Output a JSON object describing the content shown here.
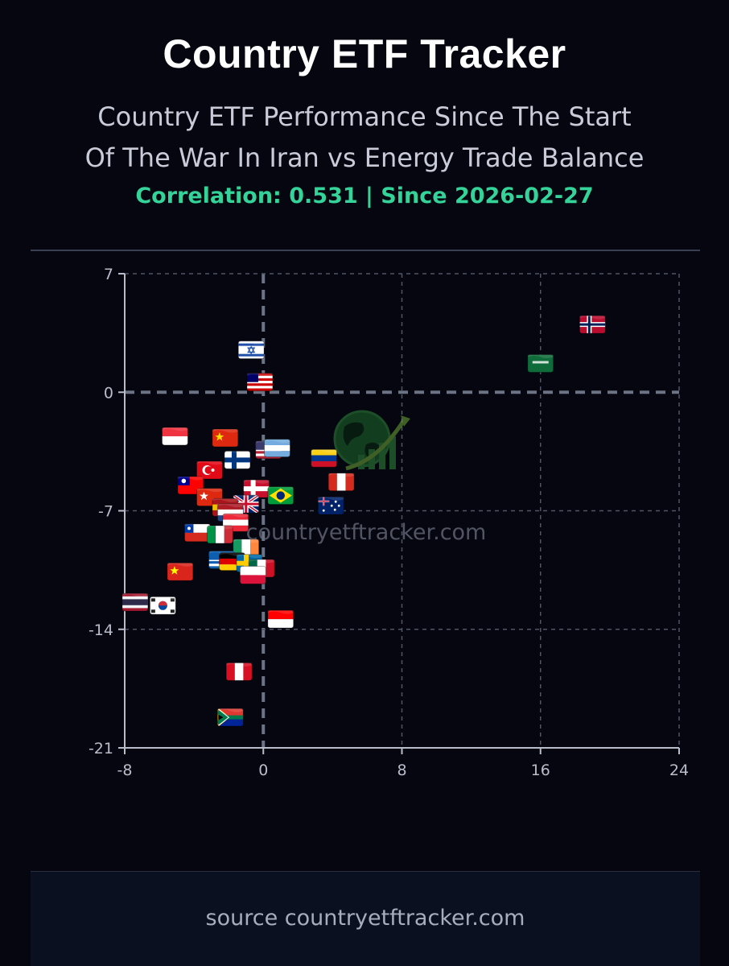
{
  "header": {
    "title": "Country ETF Tracker",
    "subtitle_line1": "Country ETF Performance Since The Start",
    "subtitle_line2": "Of The War In Iran vs Energy Trade Balance",
    "meta": "Correlation: 0.531 | Since 2026-02-27"
  },
  "colors": {
    "background": "#05060f",
    "accent_green": "#34d399",
    "grid": "#5b6170",
    "axis": "#b9bdc9",
    "footer_bg": "#0b1020"
  },
  "chart_data": {
    "type": "scatter",
    "title": "Country ETF Performance Since The Start Of The War In Iran vs Energy Trade Balance",
    "xlabel": "",
    "ylabel": "",
    "xlim": [
      -8,
      24
    ],
    "ylim": [
      -21,
      7
    ],
    "x_ticks": [
      -8,
      0,
      8,
      16,
      24
    ],
    "y_ticks": [
      7,
      0,
      -7,
      -14,
      -21
    ],
    "grid": true,
    "marker": "country-flag",
    "watermark": "countryetftracker.com",
    "points": [
      {
        "country": "Norway",
        "x": 19.0,
        "y": 4.0,
        "style": "nordic",
        "c1": "#ba0c2f",
        "c2": "#ffffff",
        "c3": "#00205b"
      },
      {
        "country": "Saudi Arabia",
        "x": 16.0,
        "y": 1.7,
        "style": "solid",
        "c1": "#0f6b3a",
        "c2": "#ffffff"
      },
      {
        "country": "Israel",
        "x": -0.7,
        "y": 2.5,
        "style": "h-stripe-center",
        "c1": "#ffffff",
        "c2": "#1f4fa8"
      },
      {
        "country": "Malaysia",
        "x": -0.2,
        "y": 0.6,
        "style": "stripes",
        "c1": "#cc0001",
        "c2": "#ffffff",
        "c3": "#010066"
      },
      {
        "country": "Singapore",
        "x": -5.1,
        "y": -2.6,
        "style": "h2",
        "c1": "#ef3340",
        "c2": "#ffffff"
      },
      {
        "country": "China",
        "x": -2.2,
        "y": -2.7,
        "style": "solid-star",
        "c1": "#de2910",
        "c2": "#ffde00"
      },
      {
        "country": "United States",
        "x": 0.3,
        "y": -3.4,
        "style": "stripes",
        "c1": "#b22234",
        "c2": "#ffffff",
        "c3": "#3c3b6e"
      },
      {
        "country": "Argentina",
        "x": 0.8,
        "y": -3.3,
        "style": "h3",
        "c1": "#74acdf",
        "c2": "#ffffff",
        "c3": "#74acdf"
      },
      {
        "country": "Colombia",
        "x": 3.5,
        "y": -3.9,
        "style": "h3",
        "c1": "#fcd116",
        "c2": "#003893",
        "c3": "#ce1126"
      },
      {
        "country": "Finland",
        "x": -1.5,
        "y": -4.0,
        "style": "nordic",
        "c1": "#ffffff",
        "c2": "#003580",
        "c3": "#003580"
      },
      {
        "country": "Turkey",
        "x": -3.1,
        "y": -4.6,
        "style": "solid-crescent",
        "c1": "#e30a17",
        "c2": "#ffffff"
      },
      {
        "country": "Taiwan",
        "x": -4.2,
        "y": -5.5,
        "style": "canton",
        "c1": "#fe0000",
        "c2": "#000095"
      },
      {
        "country": "Canada",
        "x": 4.5,
        "y": -5.3,
        "style": "v3",
        "c1": "#d52b1e",
        "c2": "#ffffff",
        "c3": "#d52b1e"
      },
      {
        "country": "Denmark",
        "x": -0.4,
        "y": -5.7,
        "style": "nordic",
        "c1": "#c8102e",
        "c2": "#ffffff",
        "c3": "#ffffff"
      },
      {
        "country": "Brazil",
        "x": 1.0,
        "y": -6.1,
        "style": "diamond",
        "c1": "#009c3b",
        "c2": "#ffdf00",
        "c3": "#002776"
      },
      {
        "country": "Hong Kong",
        "x": -3.1,
        "y": -6.2,
        "style": "solid-star",
        "c1": "#de2910",
        "c2": "#ffffff"
      },
      {
        "country": "United Kingdom",
        "x": -1.0,
        "y": -6.6,
        "style": "union",
        "c1": "#012169",
        "c2": "#ffffff",
        "c3": "#c8102e"
      },
      {
        "country": "Australia",
        "x": 3.9,
        "y": -6.7,
        "style": "canton-stars",
        "c1": "#012169",
        "c2": "#ffffff"
      },
      {
        "country": "Spain",
        "x": -2.2,
        "y": -6.8,
        "style": "h3",
        "c1": "#aa151b",
        "c2": "#f1bf00",
        "c3": "#aa151b"
      },
      {
        "country": "Netherlands",
        "x": -1.9,
        "y": -7.1,
        "style": "h3",
        "c1": "#ae1c28",
        "c2": "#ffffff",
        "c3": "#21468b"
      },
      {
        "country": "Austria",
        "x": -1.6,
        "y": -7.7,
        "style": "h3",
        "c1": "#ed2939",
        "c2": "#ffffff",
        "c3": "#ed2939"
      },
      {
        "country": "Chile",
        "x": -3.8,
        "y": -8.3,
        "style": "chile",
        "c1": "#d52b1e",
        "c2": "#ffffff",
        "c3": "#0039a6"
      },
      {
        "country": "Italy",
        "x": -2.5,
        "y": -8.4,
        "style": "v3",
        "c1": "#009246",
        "c2": "#ffffff",
        "c3": "#ce2b37"
      },
      {
        "country": "Ireland",
        "x": -1.0,
        "y": -9.2,
        "style": "v3",
        "c1": "#169b62",
        "c2": "#ffffff",
        "c3": "#ff883e"
      },
      {
        "country": "Greece",
        "x": -2.4,
        "y": -9.9,
        "style": "stripes",
        "c1": "#0d5eaf",
        "c2": "#ffffff",
        "c3": "#0d5eaf"
      },
      {
        "country": "Germany",
        "x": -1.8,
        "y": -10.0,
        "style": "h3",
        "c1": "#000000",
        "c2": "#dd0000",
        "c3": "#ffce00"
      },
      {
        "country": "Sweden",
        "x": -0.8,
        "y": -10.1,
        "style": "nordic",
        "c1": "#006aa7",
        "c2": "#fecc00",
        "c3": "#fecc00"
      },
      {
        "country": "Mexico",
        "x": -0.1,
        "y": -10.4,
        "style": "v3",
        "c1": "#006847",
        "c2": "#ffffff",
        "c3": "#ce1126"
      },
      {
        "country": "Poland",
        "x": -0.6,
        "y": -10.8,
        "style": "h2",
        "c1": "#ffffff",
        "c2": "#dc143c"
      },
      {
        "country": "Vietnam",
        "x": -4.8,
        "y": -10.6,
        "style": "solid-star",
        "c1": "#da251d",
        "c2": "#ffff00"
      },
      {
        "country": "Thailand",
        "x": -7.4,
        "y": -12.4,
        "style": "thai",
        "c1": "#a51931",
        "c2": "#f4f5f8",
        "c3": "#2d2a4a"
      },
      {
        "country": "South Korea",
        "x": -5.8,
        "y": -12.6,
        "style": "korea",
        "c1": "#ffffff",
        "c2": "#cd2e3a",
        "c3": "#0047a0"
      },
      {
        "country": "Indonesia",
        "x": 1.0,
        "y": -13.4,
        "style": "h2",
        "c1": "#ff0000",
        "c2": "#ffffff"
      },
      {
        "country": "Peru",
        "x": -1.4,
        "y": -16.5,
        "style": "v3",
        "c1": "#d91023",
        "c2": "#ffffff",
        "c3": "#d91023"
      },
      {
        "country": "South Africa",
        "x": -1.9,
        "y": -19.2,
        "style": "southafrica",
        "c1": "#007a4d",
        "c2": "#de3831",
        "c3": "#002395"
      }
    ]
  },
  "footer": {
    "source": "source countryetftracker.com"
  }
}
